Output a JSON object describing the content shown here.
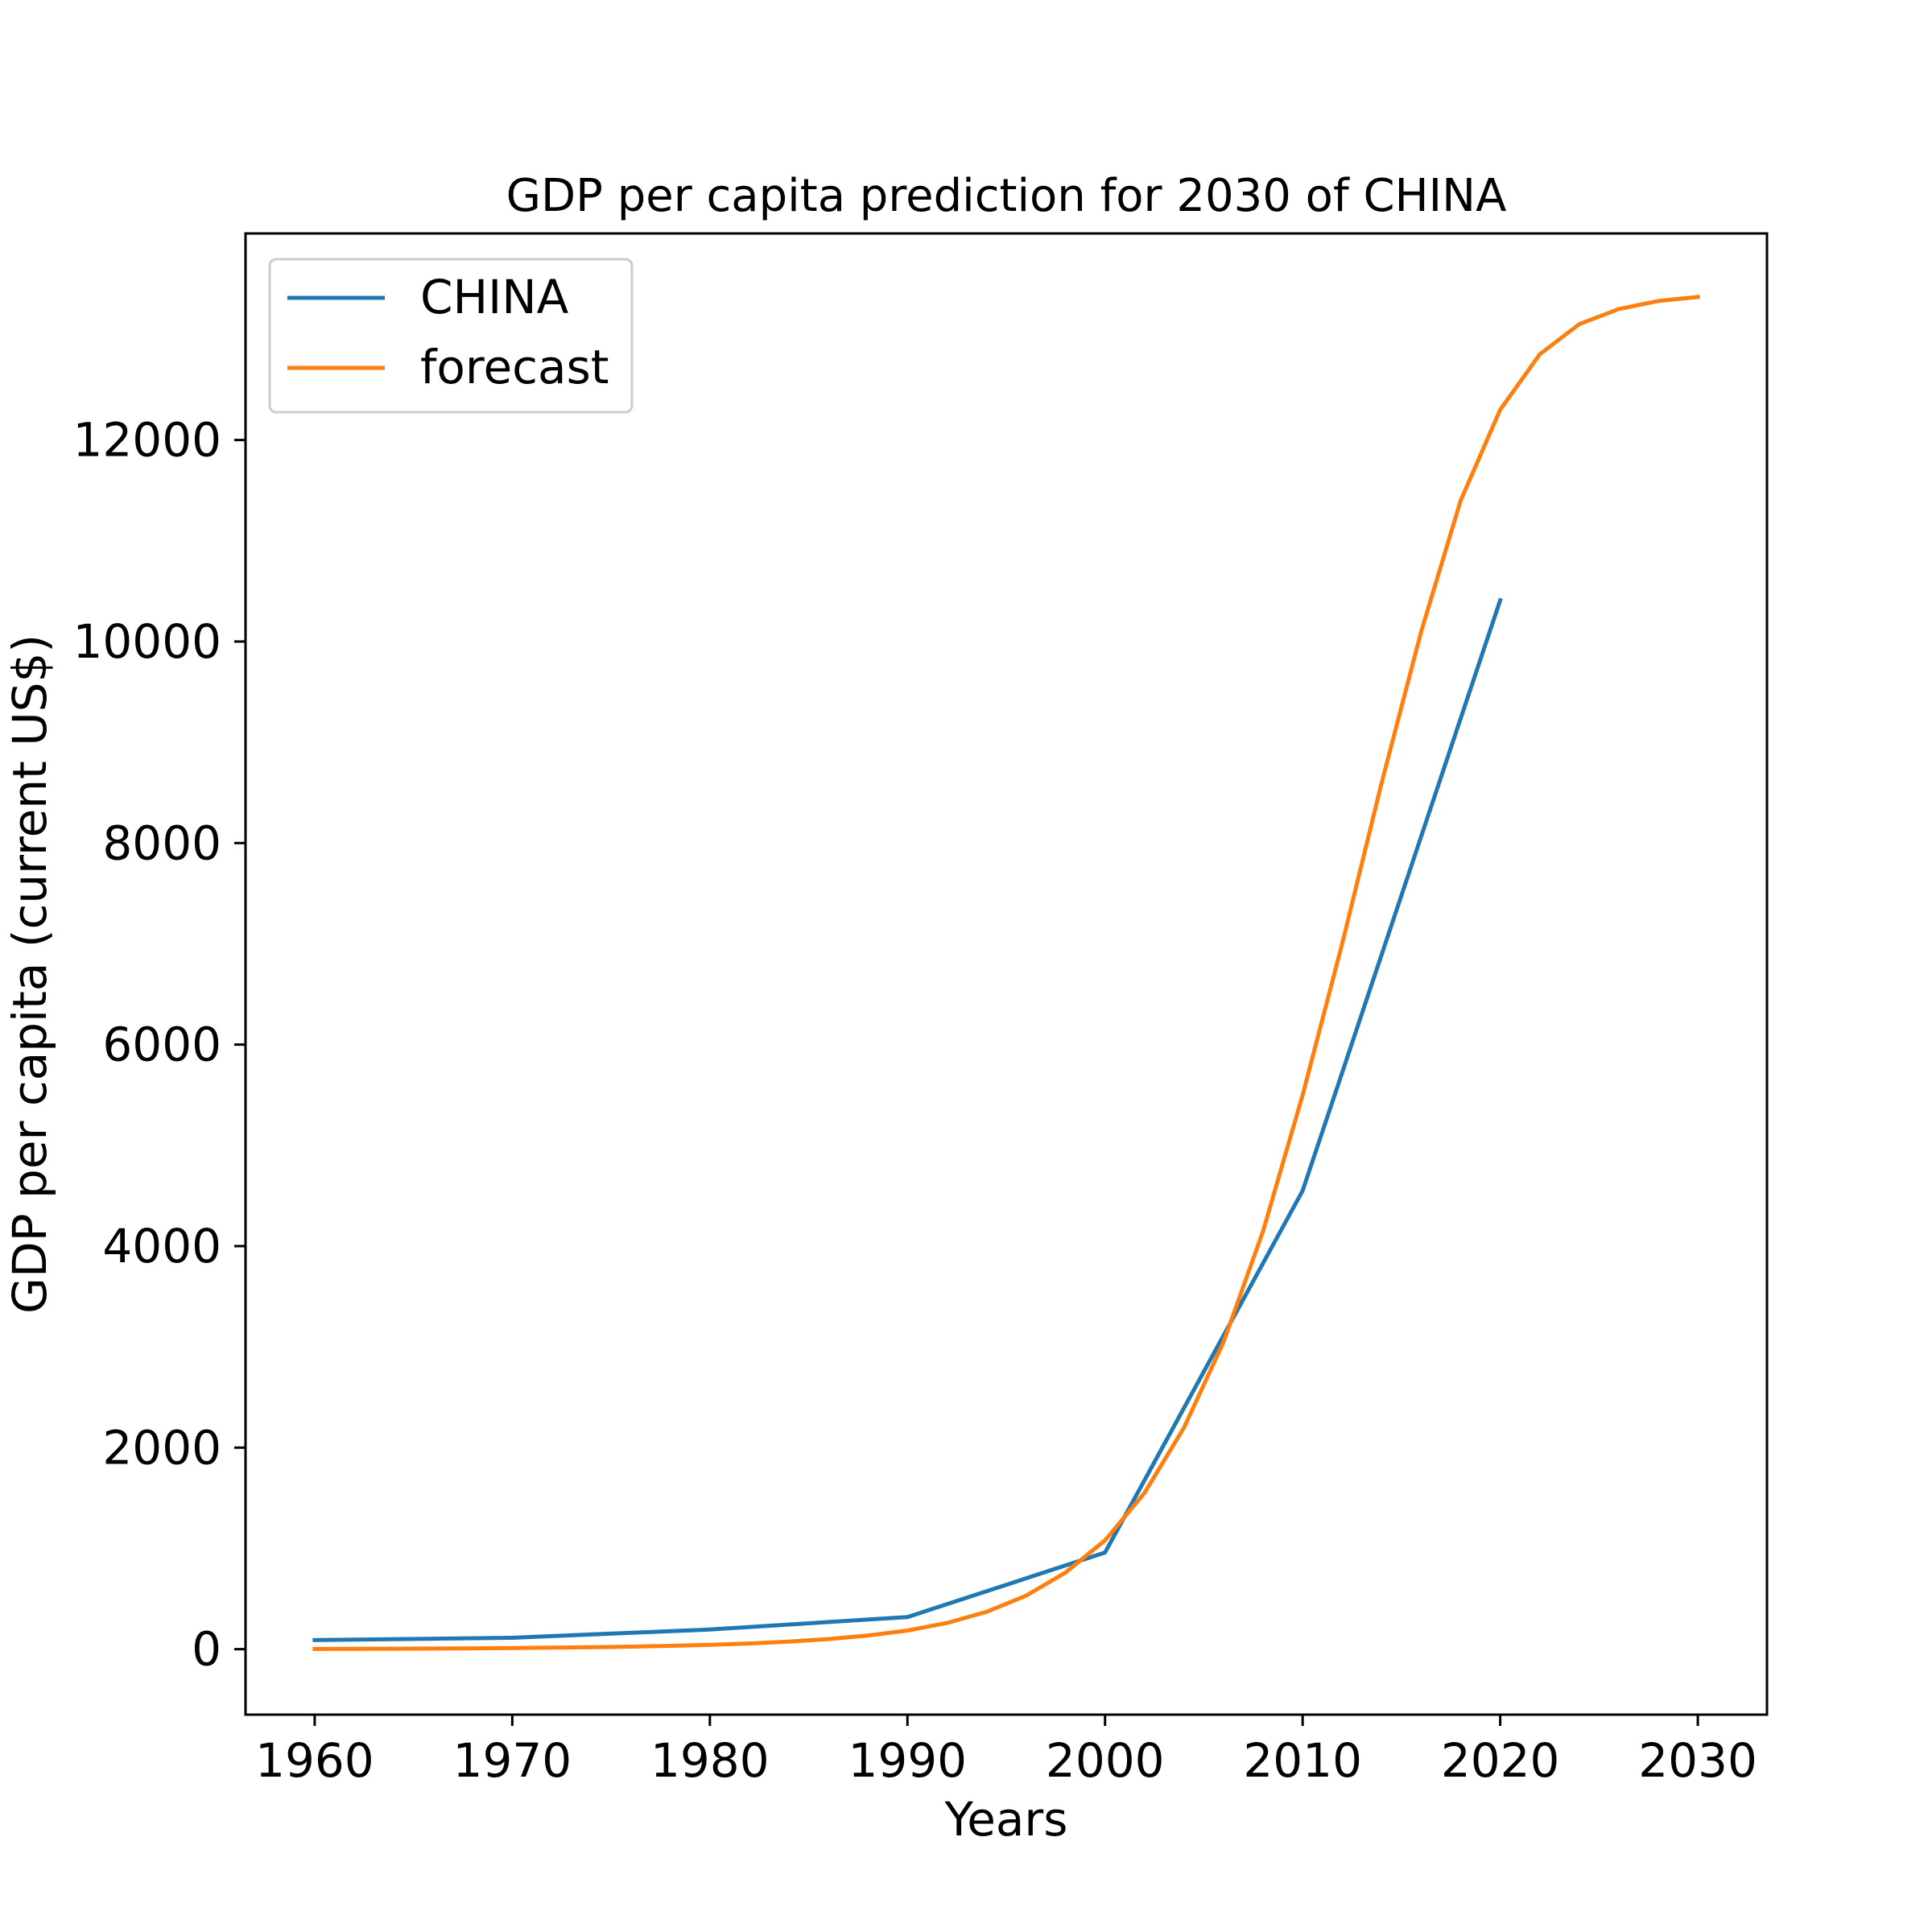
{
  "chart_data": {
    "type": "line",
    "title": "GDP per capita prediction for 2030 of CHINA",
    "xlabel": "Years",
    "ylabel": "GDP per capita (current US$)",
    "xlim": [
      1956.5,
      2033.5
    ],
    "ylim": [
      -650,
      14050
    ],
    "xticks": [
      1960,
      1970,
      1980,
      1990,
      2000,
      2010,
      2020,
      2030
    ],
    "yticks": [
      0,
      2000,
      4000,
      6000,
      8000,
      10000,
      12000
    ],
    "grid": false,
    "legend_position": "upper left",
    "series": [
      {
        "name": "CHINA",
        "color": "#1f77b4",
        "x": [
          1960,
          1970,
          1980,
          1990,
          2000,
          2010,
          2020
        ],
        "y": [
          90,
          113,
          195,
          318,
          959,
          4550,
          10409
        ]
      },
      {
        "name": "forecast",
        "color": "#ff7f0e",
        "x": [
          1960,
          1962,
          1964,
          1966,
          1968,
          1970,
          1972,
          1974,
          1976,
          1978,
          1980,
          1982,
          1984,
          1986,
          1988,
          1990,
          1992,
          1994,
          1996,
          1998,
          2000,
          2002,
          2004,
          2006,
          2008,
          2010,
          2012,
          2014,
          2016,
          2018,
          2020,
          2022,
          2024,
          2026,
          2028,
          2030
        ],
        "y": [
          2,
          3,
          4,
          6,
          8,
          11,
          15,
          19,
          25,
          33,
          43,
          56,
          75,
          100,
          135,
          185,
          260,
          370,
          530,
          760,
          1080,
          1550,
          2200,
          3050,
          4150,
          5500,
          7000,
          8600,
          10100,
          11400,
          12300,
          12850,
          13150,
          13300,
          13380,
          13420
        ]
      }
    ]
  }
}
